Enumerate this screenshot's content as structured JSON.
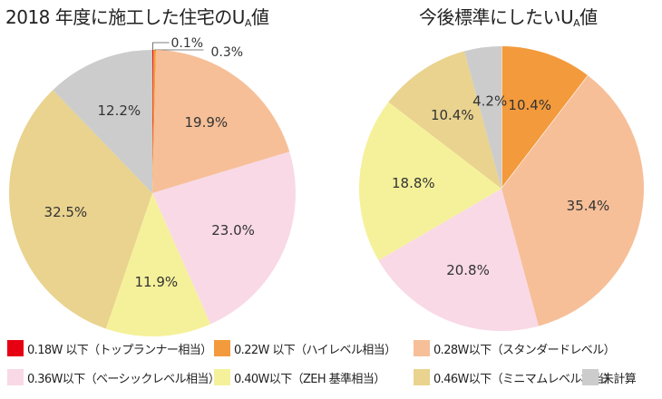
{
  "chart_data": [
    {
      "type": "pie",
      "title": "2018 年度に施工した住宅のU",
      "title_sub": "A",
      "title_suffix": "値",
      "slices": [
        {
          "label": "0.18W 以下（トップランナー相当）",
          "value": 0.1,
          "color": "#e60012",
          "text": "0.1%"
        },
        {
          "label": "0.22W 以下（ハイレベル相当）",
          "value": 0.3,
          "color": "#f39a3c",
          "text": "0.3%"
        },
        {
          "label": "0.28W以下（スタンダードレベル）",
          "value": 19.9,
          "color": "#f6bf98",
          "text": "19.9%"
        },
        {
          "label": "0.36W以下（ベーシックレベル相当）",
          "value": 23.0,
          "color": "#f9d9e6",
          "text": "23.0%"
        },
        {
          "label": "0.40W以下（ZEH 基準相当）",
          "value": 11.9,
          "color": "#f5f19a",
          "text": "11.9%"
        },
        {
          "label": "0.46W以下（ミニマムレベル相当）",
          "value": 32.5,
          "color": "#e9d38e",
          "text": "32.5%"
        },
        {
          "label": "未計算",
          "value": 12.2,
          "color": "#cccccc",
          "text": "12.2%"
        }
      ]
    },
    {
      "type": "pie",
      "title": "今後標準にしたいU",
      "title_sub": "A",
      "title_suffix": "値",
      "slices": [
        {
          "label": "0.22W 以下（ハイレベル相当）",
          "value": 10.4,
          "color": "#f39a3c",
          "text": "10.4%"
        },
        {
          "label": "0.28W以下（スタンダードレベル）",
          "value": 35.4,
          "color": "#f6bf98",
          "text": "35.4%"
        },
        {
          "label": "0.36W以下（ベーシックレベル相当）",
          "value": 20.8,
          "color": "#f9d9e6",
          "text": "20.8%"
        },
        {
          "label": "0.40W以下（ZEH 基準相当）",
          "value": 18.8,
          "color": "#f5f19a",
          "text": "18.8%"
        },
        {
          "label": "0.46W以下（ミニマムレベル相当）",
          "value": 10.4,
          "color": "#e9d38e",
          "text": "10.4%"
        },
        {
          "label": "未計算",
          "value": 4.2,
          "color": "#cccccc",
          "text": "4.2%"
        }
      ]
    }
  ],
  "legend": [
    {
      "label": "0.18W 以下（トップランナー相当）",
      "color": "#e60012"
    },
    {
      "label": "0.22W 以下（ハイレベル相当）",
      "color": "#f39a3c"
    },
    {
      "label": "0.28W以下（スタンダードレベル）",
      "color": "#f6bf98"
    },
    {
      "label": "0.36W以下（ベーシックレベル相当）",
      "color": "#f9d9e6"
    },
    {
      "label": "0.40W以下（ZEH 基準相当）",
      "color": "#f5f19a"
    },
    {
      "label": "0.46W以下（ミニマムレベル相当）",
      "color": "#e9d38e"
    },
    {
      "label": "未計算",
      "color": "#cccccc"
    }
  ]
}
